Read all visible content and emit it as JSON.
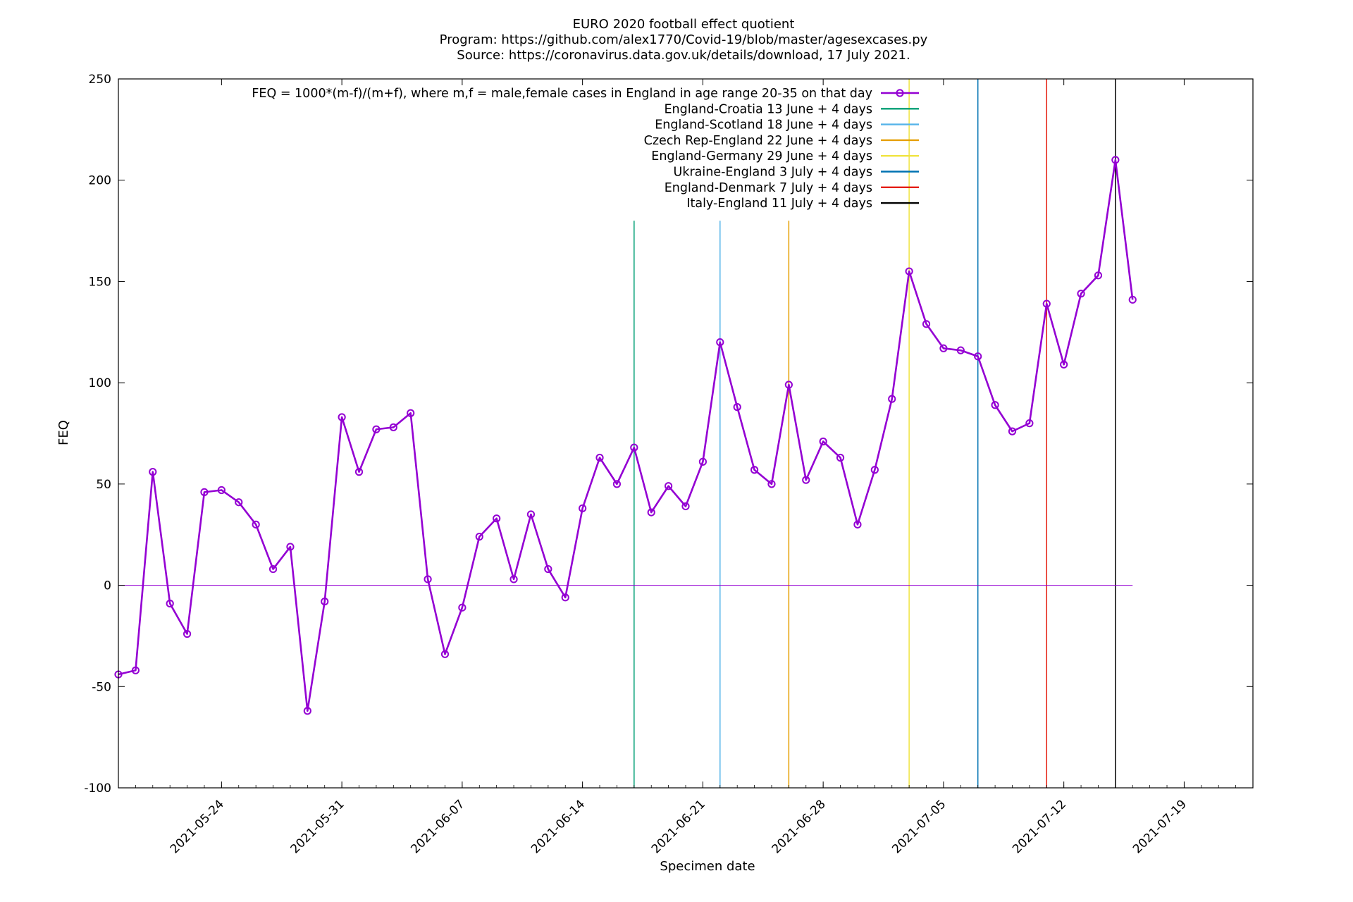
{
  "chart_data": {
    "type": "line",
    "title": "EURO 2020 football effect quotient",
    "subtitle": [
      "Program: https://github.com/alex1770/Covid-19/blob/master/agesexcases.py",
      "Source: https://coronavirus.data.gov.uk/details/download, 17 July 2021."
    ],
    "xlabel": "Specimen date",
    "ylabel": "FEQ",
    "xlim": [
      "2021-05-18",
      "2021-07-23"
    ],
    "ylim": [
      -100,
      250
    ],
    "yticks": [
      -100,
      -50,
      0,
      50,
      100,
      150,
      200,
      250
    ],
    "xtick_labels": [
      "2021-05-24",
      "2021-05-31",
      "2021-06-07",
      "2021-06-14",
      "2021-06-21",
      "2021-06-28",
      "2021-07-05",
      "2021-07-12",
      "2021-07-19"
    ],
    "grid": false,
    "legend_position": "top-right",
    "series": [
      {
        "name": "FEQ = 1000*(m-f)/(m+f), where m,f = male,female cases in England in age range 20-35 on that day",
        "color": "#9400d3",
        "marker": "circle",
        "x": [
          "2021-05-18",
          "2021-05-19",
          "2021-05-20",
          "2021-05-21",
          "2021-05-22",
          "2021-05-23",
          "2021-05-24",
          "2021-05-25",
          "2021-05-26",
          "2021-05-27",
          "2021-05-28",
          "2021-05-29",
          "2021-05-30",
          "2021-05-31",
          "2021-06-01",
          "2021-06-02",
          "2021-06-03",
          "2021-06-04",
          "2021-06-05",
          "2021-06-06",
          "2021-06-07",
          "2021-06-08",
          "2021-06-09",
          "2021-06-10",
          "2021-06-11",
          "2021-06-12",
          "2021-06-13",
          "2021-06-14",
          "2021-06-15",
          "2021-06-16",
          "2021-06-17",
          "2021-06-18",
          "2021-06-19",
          "2021-06-20",
          "2021-06-21",
          "2021-06-22",
          "2021-06-23",
          "2021-06-24",
          "2021-06-25",
          "2021-06-26",
          "2021-06-27",
          "2021-06-28",
          "2021-06-29",
          "2021-06-30",
          "2021-07-01",
          "2021-07-02",
          "2021-07-03",
          "2021-07-04",
          "2021-07-05",
          "2021-07-06",
          "2021-07-07",
          "2021-07-08",
          "2021-07-09",
          "2021-07-10",
          "2021-07-11",
          "2021-07-12",
          "2021-07-13",
          "2021-07-14",
          "2021-07-15",
          "2021-07-16"
        ],
        "values": [
          -44,
          -42,
          56,
          -9,
          -24,
          46,
          47,
          41,
          30,
          8,
          19,
          -62,
          -8,
          83,
          56,
          77,
          78,
          85,
          3,
          -34,
          -11,
          24,
          33,
          3,
          35,
          8,
          -6,
          38,
          63,
          50,
          68,
          36,
          49,
          39,
          61,
          120,
          88,
          57,
          50,
          99,
          52,
          71,
          63,
          30,
          57,
          92,
          155,
          129,
          117,
          116,
          113,
          89,
          76,
          80,
          139,
          109,
          144,
          153,
          210,
          141
        ]
      }
    ],
    "reference_lines": [
      {
        "label": "England-Croatia 13 June + 4 days",
        "x": "2021-06-17",
        "color": "#009e73"
      },
      {
        "label": "England-Scotland 18 June + 4 days",
        "x": "2021-06-22",
        "color": "#56b4e9"
      },
      {
        "label": "Czech Rep-England 22 June + 4 days",
        "x": "2021-06-26",
        "color": "#e69f00"
      },
      {
        "label": "England-Germany 29 June + 4 days",
        "x": "2021-07-03",
        "color": "#f0e442"
      },
      {
        "label": "Ukraine-England 3 July + 4 days",
        "x": "2021-07-07",
        "color": "#0072b2"
      },
      {
        "label": "England-Denmark 7 July + 4 days",
        "x": "2021-07-11",
        "color": "#e51e10"
      },
      {
        "label": "Italy-England 11 July + 4 days",
        "x": "2021-07-15",
        "color": "#000000"
      }
    ],
    "zero_line": {
      "y": 0,
      "color": "#9400d3"
    }
  }
}
